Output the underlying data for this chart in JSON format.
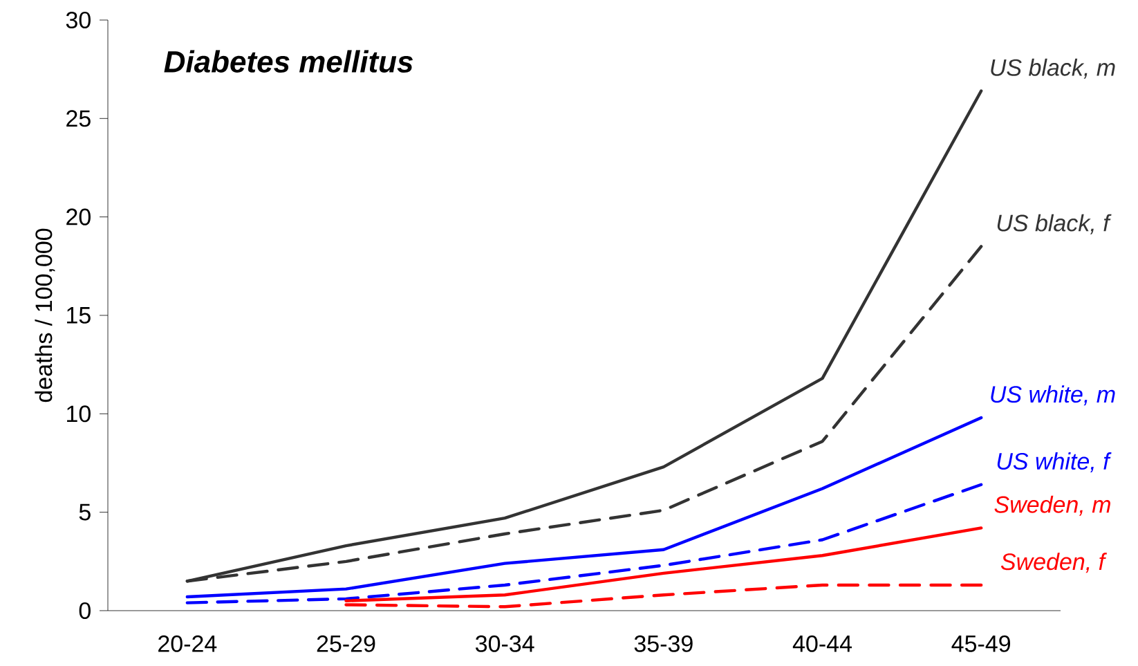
{
  "chart_data": {
    "type": "line",
    "title": "Diabetes mellitus",
    "ylabel": "deaths / 100,000",
    "categories": [
      "20-24",
      "25-29",
      "30-34",
      "35-39",
      "40-44",
      "45-49"
    ],
    "ylim": [
      0,
      30
    ],
    "yticks": [
      0,
      5,
      10,
      15,
      20,
      25,
      30
    ],
    "grid": false,
    "legend": false,
    "marker": "none",
    "series": [
      {
        "name": "US black, m",
        "color": "#333333",
        "line_style": "solid",
        "values": [
          1.5,
          3.3,
          4.7,
          7.3,
          11.8,
          26.4
        ]
      },
      {
        "name": "US black, f",
        "color": "#333333",
        "line_style": "dashed",
        "values": [
          1.5,
          2.5,
          3.9,
          5.1,
          8.6,
          18.5
        ]
      },
      {
        "name": "US white, m",
        "color": "#0000ff",
        "line_style": "solid",
        "values": [
          0.7,
          1.1,
          2.4,
          3.1,
          6.2,
          9.8
        ]
      },
      {
        "name": "US white, f",
        "color": "#0000ff",
        "line_style": "dashed",
        "values": [
          0.4,
          0.6,
          1.3,
          2.3,
          3.6,
          6.4
        ]
      },
      {
        "name": "Sweden, m",
        "color": "#ff0000",
        "line_style": "solid",
        "values": [
          null,
          0.5,
          0.8,
          1.9,
          2.8,
          4.2
        ]
      },
      {
        "name": "Sweden, f",
        "color": "#ff0000",
        "line_style": "dashed",
        "values": [
          null,
          0.3,
          0.2,
          0.8,
          1.3,
          1.3
        ]
      }
    ]
  }
}
